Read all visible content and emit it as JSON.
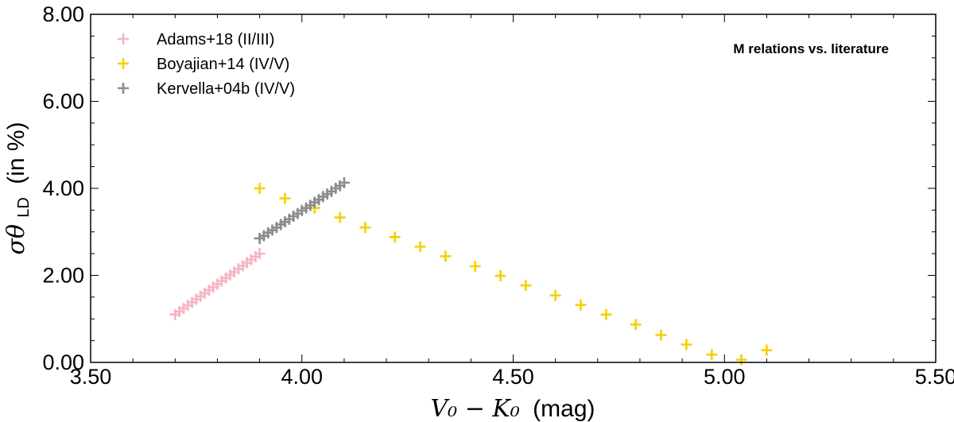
{
  "chart_data": {
    "type": "scatter",
    "title": "M relations vs. literature",
    "xlabel_math": "V₀ − K₀",
    "xlabel_unit": "(mag)",
    "ylabel_math": "σθ",
    "ylabel_sub": "LD",
    "ylabel_unit": "(in %)",
    "xlim": [
      3.5,
      5.5
    ],
    "ylim": [
      0.0,
      8.0
    ],
    "xticks": [
      "3.50",
      "4.00",
      "4.50",
      "5.00",
      "5.50"
    ],
    "yticks": [
      "0.00",
      "2.00",
      "4.00",
      "6.00",
      "8.00"
    ],
    "xtick_values": [
      3.5,
      4.0,
      4.5,
      5.0,
      5.5
    ],
    "ytick_values": [
      0,
      2,
      4,
      6,
      8
    ],
    "grid": false,
    "legend_position": "top-left",
    "marker": "plus",
    "series": [
      {
        "name": "Adams+18 (II/III)",
        "color": "#f4b6c2",
        "x": [
          3.7,
          3.71,
          3.72,
          3.73,
          3.74,
          3.75,
          3.76,
          3.77,
          3.78,
          3.79,
          3.8,
          3.81,
          3.82,
          3.83,
          3.84,
          3.85,
          3.86,
          3.87,
          3.88,
          3.89,
          3.9
        ],
        "y": [
          1.1,
          1.17,
          1.24,
          1.31,
          1.38,
          1.45,
          1.52,
          1.59,
          1.66,
          1.73,
          1.8,
          1.87,
          1.94,
          2.01,
          2.08,
          2.15,
          2.22,
          2.29,
          2.36,
          2.43,
          2.5
        ]
      },
      {
        "name": "Boyajian+14 (IV/V)",
        "color": "#f5d000",
        "x": [
          3.9,
          3.96,
          4.03,
          4.09,
          4.15,
          4.22,
          4.28,
          4.34,
          4.41,
          4.47,
          4.53,
          4.6,
          4.66,
          4.72,
          4.79,
          4.85,
          4.91,
          4.97,
          5.04,
          5.1
        ],
        "y": [
          4.0,
          3.77,
          3.55,
          3.33,
          3.1,
          2.88,
          2.66,
          2.44,
          2.21,
          1.99,
          1.77,
          1.54,
          1.32,
          1.1,
          0.87,
          0.63,
          0.41,
          0.18,
          0.06,
          0.28
        ]
      },
      {
        "name": "Kervella+04b (IV/V)",
        "color": "#8c8c8c",
        "x": [
          3.9,
          3.91,
          3.92,
          3.93,
          3.94,
          3.95,
          3.96,
          3.97,
          3.98,
          3.99,
          4.0,
          4.01,
          4.02,
          4.03,
          4.04,
          4.05,
          4.06,
          4.07,
          4.08,
          4.09,
          4.1
        ],
        "y": [
          2.85,
          2.91,
          2.98,
          3.04,
          3.1,
          3.17,
          3.23,
          3.29,
          3.36,
          3.42,
          3.49,
          3.55,
          3.61,
          3.68,
          3.74,
          3.81,
          3.87,
          3.93,
          4.0,
          4.06,
          4.13
        ]
      }
    ]
  }
}
